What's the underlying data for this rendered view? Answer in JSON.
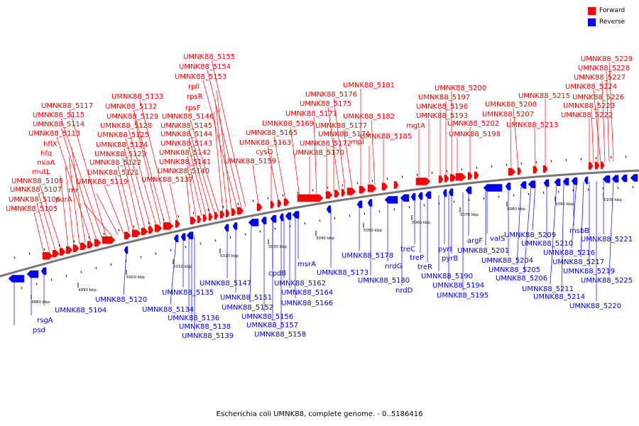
{
  "colors": {
    "forward": "#ff0000",
    "reverse": "#0000ff",
    "backbone": "#777777"
  },
  "legend": [
    {
      "label": "Forward",
      "color": "#ff0000"
    },
    {
      "label": "Reverse",
      "color": "#0000ff"
    }
  ],
  "caption": "Escherichia coli UMNK88, complete genome. - 0..5186416",
  "ticks": [
    "4980 kbp",
    "4990 kbp",
    "5000 kbp",
    "5010 kbp",
    "5020 kbp",
    "5030 kbp",
    "5040 kbp",
    "5050 kbp",
    "5060 kbp",
    "5070 kbp",
    "5080 kbp",
    "5090 kbp",
    "5100 kbp"
  ],
  "forward_labels": [
    "UMNK88_5105",
    "UMNK88_5106",
    "UMNK88_5107",
    "UMNK88_5108",
    "mutL",
    "miaA",
    "hfq",
    "hflX",
    "UMNK88_5113",
    "UMNK88_5114",
    "UMNK88_5115",
    "UMNK88_5117",
    "purA",
    "rnr",
    "UMNK88_5119",
    "UMNK88_5121",
    "UMNK88_5122",
    "UMNK88_5123",
    "UMNK88_5124",
    "UMNK88_5125",
    "UMNK88_5128",
    "UMNK88_5129",
    "UMNK88_5132",
    "UMNK88_5133",
    "UMNK88_5137",
    "UMNK88_5140",
    "UMNK88_5141",
    "UMNK88_5142",
    "UMNK88_5143",
    "UMNK88_5144",
    "UMNK88_5145",
    "UMNK88_5146",
    "rpsF",
    "rpsR",
    "rplI",
    "UMNK88_5153",
    "UMNK88_5154",
    "UMNK88_5155",
    "UMNK88_5159",
    "cysQ",
    "UMNK88_5163",
    "UMNK88_5165",
    "UMNK88_5169",
    "UMNK88_5170",
    "UMNK88_5171",
    "UMNK88_5172",
    "UMNK88_5174",
    "UMNK88_5175",
    "UMNK88_5176",
    "UMNK88_5177",
    "UMNK88_5181",
    "mpl",
    "UMNK88_5182",
    "UMNK88_5185",
    "mgtA",
    "UMNK88_5193",
    "UMNK88_5196",
    "UMNK88_5197",
    "UMNK88_5200",
    "UMNK88_5198",
    "UMNK88_5202",
    "UMNK88_5207",
    "UMNK88_5208",
    "UMNK88_5213",
    "UMNK88_5215",
    "UMNK88_5222",
    "UMNK88_5223",
    "UMNK88_5226",
    "UMNK88_5224",
    "UMNK88_5227",
    "UMNK88_5228",
    "UMNK88_5229"
  ],
  "reverse_labels": [
    "psd",
    "rsgA",
    "UMNK88_5104",
    "UMNK88_5120",
    "UMNK88_5134",
    "UMNK88_5135",
    "UMNK88_5136",
    "UMNK88_5138",
    "UMNK88_5139",
    "UMNK88_5147",
    "UMNK88_5151",
    "UMNK88_5152",
    "UMNK88_5156",
    "UMNK88_5157",
    "UMNK88_5158",
    "cpdB",
    "UMNK88_5162",
    "UMNK88_5164",
    "UMNK88_5166",
    "msrA",
    "UMNK88_5173",
    "UMNK88_5178",
    "UMNK88_5180",
    "nrdG",
    "nrdD",
    "treC",
    "treP",
    "treR",
    "pyrI",
    "pyrB",
    "UMNK88_5190",
    "UMNK88_5194",
    "UMNK88_5195",
    "argF",
    "UMNK88_5201",
    "valS",
    "UMNK88_5204",
    "UMNK88_5205",
    "UMNK88_5206",
    "UMNK88_5209",
    "UMNK88_5210",
    "UMNK88_5211",
    "UMNK88_5214",
    "msbB",
    "UMNK88_5216",
    "UMNK88_5217",
    "UMNK88_5219",
    "UMNK88_5220",
    "UMNK88_5221",
    "UMNK88_5225"
  ]
}
